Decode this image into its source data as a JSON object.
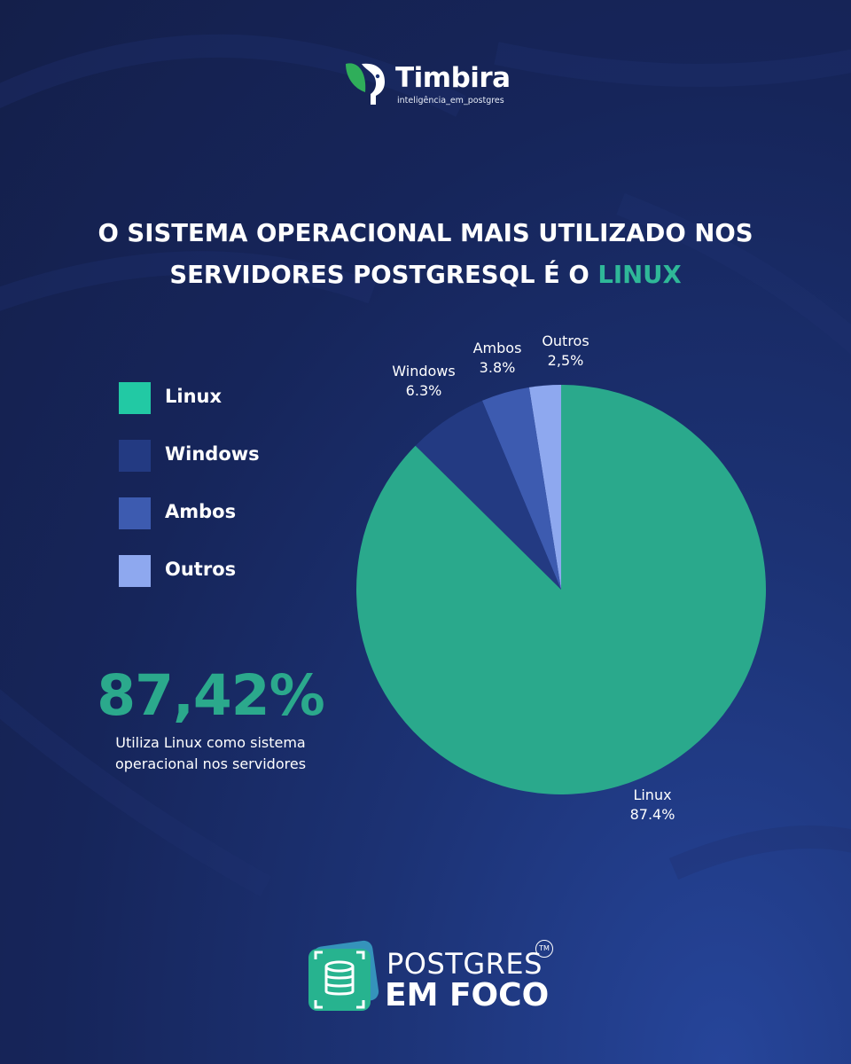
{
  "header": {
    "brand_name": "Timbira",
    "brand_tagline": "inteligência_em_postgres"
  },
  "title": {
    "line1": "O SISTEMA OPERACIONAL MAIS UTILIZADO NOS",
    "line2_prefix": "SERVIDORES POSTGRESQL É O ",
    "highlight": "LINUX",
    "highlight_color": "#2fb898"
  },
  "stat": {
    "value": "87,42%",
    "caption": "Utiliza Linux como sistema operacional nos servidores"
  },
  "legend": [
    {
      "label": "Linux",
      "color": "#22c9a4"
    },
    {
      "label": "Windows",
      "color": "#233a82"
    },
    {
      "label": "Ambos",
      "color": "#3d5bb0"
    },
    {
      "label": "Outros",
      "color": "#8ea8ef"
    }
  ],
  "chart_data": {
    "type": "pie",
    "slices": [
      {
        "name": "Linux",
        "value": 87.4,
        "label": "87.4%",
        "color": "#2aa98c"
      },
      {
        "name": "Windows",
        "value": 6.3,
        "label": "6.3%",
        "color": "#233a82"
      },
      {
        "name": "Ambos",
        "value": 3.8,
        "label": "3.8%",
        "color": "#3d5bb0"
      },
      {
        "name": "Outros",
        "value": 2.5,
        "label": "2,5%",
        "color": "#8ea8ef"
      }
    ],
    "start": "top",
    "direction": "clockwise",
    "legend_position": "left"
  },
  "footer": {
    "line1": "POSTGRES",
    "line2": "EM FOCO",
    "trademark": "TM"
  }
}
